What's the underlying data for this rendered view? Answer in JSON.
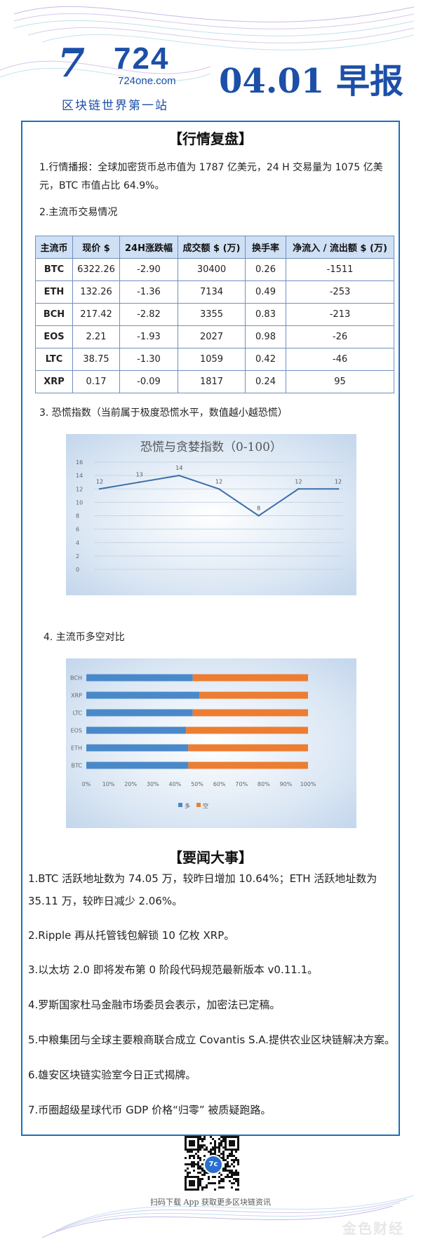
{
  "header": {
    "logo_mark": "7",
    "logo_number": "724",
    "site": "724one.com",
    "tagline": "区块链世界第一站",
    "date_title": "04.01 早报"
  },
  "section1": {
    "title": "【行情复盘】",
    "p1": "1.行情播报：全球加密货币总市值为 1787 亿美元，24 H 交易量为 1075 亿美元，BTC 市值占比  64.9%。",
    "p2": "2.主流币交易情况",
    "table": {
      "headers": [
        "主流币",
        "现价 $",
        "24H涨跌幅",
        "成交额 $ (万)",
        "换手率",
        "净流入 / 流出额 $ (万)"
      ],
      "rows": [
        [
          "BTC",
          "6322.26",
          "-2.90",
          "30400",
          "0.26",
          "-1511"
        ],
        [
          "ETH",
          "132.26",
          "-1.36",
          "7134",
          "0.49",
          "-253"
        ],
        [
          "BCH",
          "217.42",
          "-2.82",
          "3355",
          "0.83",
          "-213"
        ],
        [
          "EOS",
          "2.21",
          "-1.93",
          "2027",
          "0.98",
          "-26"
        ],
        [
          "LTC",
          "38.75",
          "-1.30",
          "1059",
          "0.42",
          "-46"
        ],
        [
          "XRP",
          "0.17",
          "-0.09",
          "1817",
          "0.24",
          "95"
        ]
      ]
    },
    "p3": "3.  恐慌指数（当前属于极度恐慌水平，数值越小越恐慌）",
    "p4": "4.  主流币多空对比"
  },
  "chart_data": [
    {
      "type": "line",
      "title": "恐慌与贪婪指数（0-100）",
      "x": [
        1,
        2,
        3,
        4,
        5,
        6,
        7
      ],
      "values": [
        12,
        13,
        14,
        12,
        8,
        12,
        12
      ],
      "data_labels": [
        "12",
        "13",
        "14",
        "12",
        "8",
        "12",
        "12"
      ],
      "ylim": [
        0,
        16
      ],
      "yticks": [
        "0",
        "2",
        "4",
        "6",
        "8",
        "10",
        "12",
        "14",
        "16"
      ],
      "grid": true,
      "color": "#3d70a8"
    },
    {
      "type": "bar",
      "orientation": "horizontal-stacked-100",
      "categories": [
        "BTC",
        "ETH",
        "EOS",
        "LTC",
        "XRP",
        "BCH"
      ],
      "series": [
        {
          "name": "多",
          "color": "#4a89c9",
          "values": [
            46,
            46,
            45,
            48,
            51,
            48
          ]
        },
        {
          "name": "空",
          "color": "#ed7d31",
          "values": [
            54,
            54,
            55,
            52,
            49,
            52
          ]
        }
      ],
      "xticks": [
        "0%",
        "10%",
        "20%",
        "30%",
        "40%",
        "50%",
        "60%",
        "70%",
        "80%",
        "90%",
        "100%"
      ],
      "xlim": [
        0,
        100
      ],
      "legend": "bottom"
    }
  ],
  "section2": {
    "title": "【要闻大事】",
    "items": [
      "1.BTC 活跃地址数为 74.05 万，较昨日增加 10.64%；ETH 活跃地址数为 35.11 万，较昨日减少 2.06%。",
      "2.Ripple 再从托管钱包解锁 10 亿枚 XRP。",
      "3.以太坊 2.0 即将发布第 0 阶段代码规范最新版本 v0.11.1。",
      "4.罗斯国家杜马金融市场委员会表示，加密法已定稿。",
      "5.中粮集团与全球主要粮商联合成立 Covantis S.A.提供农业区块链解决方案。",
      "6.雄安区块链实验室今日正式揭牌。",
      "7.币圈超级星球代币 GDP 价格“归零” 被质疑跑路。"
    ]
  },
  "footer": {
    "scan_text": "扫码下载 App  获取更多区块链资讯",
    "qr_center": "7c",
    "watermark": "金色财经"
  }
}
